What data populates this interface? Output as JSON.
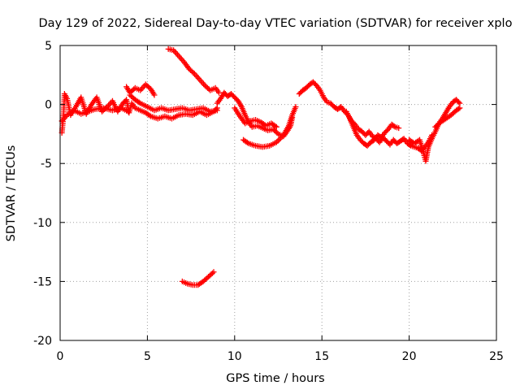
{
  "chart_data": {
    "type": "scatter",
    "title": "Day 129 of 2022, Sidereal Day-to-day VTEC variation (SDTVAR) for receiver xplo",
    "xlabel": "GPS time / hours",
    "ylabel": "SDTVAR / TECUs",
    "xlim": [
      0,
      25
    ],
    "ylim": [
      -20,
      5
    ],
    "xticks": [
      0,
      5,
      10,
      15,
      20,
      25
    ],
    "yticks": [
      -20,
      -15,
      -10,
      -5,
      0,
      5
    ],
    "xtick_labels": [
      "0",
      "5",
      "10",
      "15",
      "20",
      "25"
    ],
    "ytick_labels": [
      "-20",
      "-15",
      "-10",
      "-5",
      "0",
      "5"
    ],
    "grid": true,
    "grid_style": "dotted",
    "marker": "plus",
    "series": [
      {
        "name": "SDTVAR",
        "color": "#ff0000",
        "segments": [
          [
            [
              0.1,
              -2.4
            ],
            [
              0.2,
              -0.8
            ],
            [
              0.25,
              0.9
            ],
            [
              0.4,
              0.5
            ],
            [
              0.6,
              -0.9
            ],
            [
              0.9,
              -0.2
            ],
            [
              1.2,
              0.6
            ],
            [
              1.5,
              -0.8
            ],
            [
              1.8,
              0.0
            ],
            [
              2.1,
              0.6
            ],
            [
              2.4,
              -0.6
            ],
            [
              2.7,
              -0.2
            ],
            [
              3.0,
              0.3
            ],
            [
              3.3,
              -0.6
            ],
            [
              3.6,
              0.1
            ],
            [
              3.8,
              0.4
            ],
            [
              3.95,
              -0.7
            ],
            [
              4.1,
              0.1
            ],
            [
              4.3,
              -0.3
            ],
            [
              4.6,
              -0.5
            ],
            [
              4.9,
              -0.7
            ],
            [
              5.2,
              -1.0
            ],
            [
              5.6,
              -1.2
            ],
            [
              6.0,
              -1.0
            ],
            [
              6.4,
              -1.2
            ],
            [
              6.8,
              -0.9
            ],
            [
              7.2,
              -0.8
            ],
            [
              7.6,
              -0.9
            ],
            [
              8.0,
              -0.6
            ],
            [
              8.4,
              -0.9
            ],
            [
              8.8,
              -0.6
            ],
            [
              9.0,
              -0.3
            ]
          ],
          [
            [
              0.1,
              -1.4
            ],
            [
              0.4,
              -0.9
            ],
            [
              0.8,
              -0.5
            ],
            [
              1.2,
              -0.8
            ],
            [
              1.6,
              -0.6
            ],
            [
              2.0,
              -0.4
            ],
            [
              2.5,
              -0.3
            ],
            [
              3.0,
              -0.5
            ],
            [
              3.5,
              -0.3
            ],
            [
              3.9,
              -0.6
            ]
          ],
          [
            [
              3.8,
              1.5
            ],
            [
              4.0,
              1.0
            ],
            [
              4.3,
              1.4
            ],
            [
              4.6,
              1.2
            ],
            [
              4.9,
              1.7
            ],
            [
              5.2,
              1.3
            ],
            [
              5.4,
              0.8
            ]
          ],
          [
            [
              4.0,
              0.8
            ],
            [
              4.3,
              0.4
            ],
            [
              4.6,
              0.1
            ],
            [
              5.0,
              -0.2
            ],
            [
              5.4,
              -0.5
            ],
            [
              5.8,
              -0.3
            ],
            [
              6.2,
              -0.5
            ],
            [
              6.6,
              -0.4
            ],
            [
              7.0,
              -0.3
            ],
            [
              7.4,
              -0.5
            ],
            [
              7.8,
              -0.4
            ],
            [
              8.2,
              -0.3
            ],
            [
              8.6,
              -0.6
            ],
            [
              9.0,
              -0.5
            ]
          ],
          [
            [
              6.2,
              4.7
            ],
            [
              6.5,
              4.6
            ],
            [
              6.8,
              4.1
            ],
            [
              7.1,
              3.6
            ],
            [
              7.4,
              3.0
            ],
            [
              7.7,
              2.6
            ],
            [
              8.0,
              2.1
            ],
            [
              8.3,
              1.6
            ],
            [
              8.6,
              1.2
            ],
            [
              8.9,
              1.4
            ],
            [
              9.1,
              1.0
            ]
          ],
          [
            [
              9.0,
              0.1
            ],
            [
              9.2,
              0.5
            ],
            [
              9.4,
              1.0
            ],
            [
              9.6,
              0.7
            ],
            [
              9.8,
              0.9
            ],
            [
              10.0,
              0.6
            ],
            [
              10.2,
              0.3
            ],
            [
              10.4,
              -0.2
            ],
            [
              10.6,
              -0.9
            ],
            [
              10.8,
              -1.5
            ],
            [
              11.0,
              -1.9
            ],
            [
              11.3,
              -1.8
            ],
            [
              11.6,
              -2.0
            ],
            [
              11.9,
              -2.2
            ],
            [
              12.2,
              -2.1
            ],
            [
              12.5,
              -2.5
            ],
            [
              12.8,
              -2.7
            ],
            [
              13.0,
              -2.3
            ],
            [
              13.2,
              -1.8
            ],
            [
              13.3,
              -1.1
            ]
          ],
          [
            [
              10.0,
              -0.3
            ],
            [
              10.3,
              -1.0
            ],
            [
              10.6,
              -1.6
            ],
            [
              10.9,
              -1.4
            ],
            [
              11.2,
              -1.3
            ],
            [
              11.5,
              -1.5
            ],
            [
              11.8,
              -1.8
            ],
            [
              12.1,
              -1.6
            ],
            [
              12.4,
              -1.9
            ]
          ],
          [
            [
              10.5,
              -3.0
            ],
            [
              10.8,
              -3.3
            ],
            [
              11.2,
              -3.5
            ],
            [
              11.6,
              -3.6
            ],
            [
              12.0,
              -3.5
            ],
            [
              12.4,
              -3.2
            ],
            [
              12.8,
              -2.6
            ],
            [
              13.1,
              -1.8
            ],
            [
              13.3,
              -0.9
            ],
            [
              13.5,
              -0.2
            ]
          ],
          [
            [
              13.7,
              0.9
            ],
            [
              13.9,
              1.2
            ],
            [
              14.1,
              1.4
            ],
            [
              14.3,
              1.7
            ],
            [
              14.5,
              1.9
            ],
            [
              14.7,
              1.6
            ],
            [
              14.9,
              1.2
            ],
            [
              15.1,
              0.6
            ],
            [
              15.3,
              0.2
            ],
            [
              15.5,
              0.1
            ],
            [
              15.7,
              -0.2
            ],
            [
              15.9,
              -0.4
            ],
            [
              16.1,
              -0.2
            ],
            [
              16.3,
              -0.6
            ],
            [
              16.5,
              -0.9
            ],
            [
              16.7,
              -1.4
            ],
            [
              16.9,
              -1.7
            ],
            [
              17.1,
              -2.1
            ],
            [
              17.3,
              -2.3
            ],
            [
              17.5,
              -2.6
            ],
            [
              17.7,
              -2.3
            ],
            [
              17.9,
              -2.7
            ],
            [
              18.1,
              -2.9
            ],
            [
              18.3,
              -3.2
            ],
            [
              18.5,
              -2.8
            ],
            [
              18.7,
              -3.1
            ],
            [
              18.9,
              -3.4
            ],
            [
              19.1,
              -3.0
            ],
            [
              19.3,
              -3.3
            ],
            [
              19.5,
              -3.1
            ],
            [
              19.7,
              -2.9
            ],
            [
              19.9,
              -3.3
            ],
            [
              20.1,
              -3.5
            ],
            [
              20.3,
              -3.6
            ],
            [
              20.5,
              -3.7
            ],
            [
              20.7,
              -3.9
            ],
            [
              20.9,
              -3.6
            ],
            [
              21.1,
              -3.2
            ],
            [
              21.3,
              -2.6
            ]
          ],
          [
            [
              16.4,
              -0.6
            ],
            [
              16.6,
              -1.2
            ],
            [
              16.8,
              -1.9
            ],
            [
              17.0,
              -2.6
            ],
            [
              17.2,
              -3.0
            ],
            [
              17.4,
              -3.3
            ],
            [
              17.6,
              -3.5
            ],
            [
              17.8,
              -3.2
            ],
            [
              18.0,
              -3.0
            ],
            [
              18.2,
              -2.6
            ],
            [
              18.4,
              -2.8
            ],
            [
              18.6,
              -2.4
            ],
            [
              18.8,
              -2.1
            ],
            [
              19.0,
              -1.7
            ],
            [
              19.2,
              -1.9
            ],
            [
              19.4,
              -2.0
            ]
          ],
          [
            [
              20.0,
              -3.0
            ],
            [
              20.3,
              -3.3
            ],
            [
              20.6,
              -3.0
            ],
            [
              20.8,
              -4.0
            ],
            [
              20.95,
              -4.8
            ],
            [
              21.1,
              -3.6
            ],
            [
              21.3,
              -2.9
            ],
            [
              21.5,
              -2.3
            ],
            [
              21.7,
              -1.6
            ],
            [
              21.9,
              -1.2
            ],
            [
              22.1,
              -0.7
            ],
            [
              22.3,
              -0.2
            ],
            [
              22.5,
              0.2
            ],
            [
              22.7,
              0.4
            ],
            [
              22.9,
              0.1
            ]
          ],
          [
            [
              21.5,
              -1.9
            ],
            [
              21.8,
              -1.5
            ],
            [
              22.1,
              -1.2
            ],
            [
              22.4,
              -0.9
            ],
            [
              22.7,
              -0.5
            ],
            [
              22.9,
              -0.3
            ]
          ],
          [
            [
              7.0,
              -15.0
            ],
            [
              7.3,
              -15.2
            ],
            [
              7.6,
              -15.3
            ],
            [
              7.9,
              -15.3
            ],
            [
              8.2,
              -15.0
            ],
            [
              8.5,
              -14.6
            ],
            [
              8.8,
              -14.2
            ]
          ]
        ]
      }
    ]
  }
}
